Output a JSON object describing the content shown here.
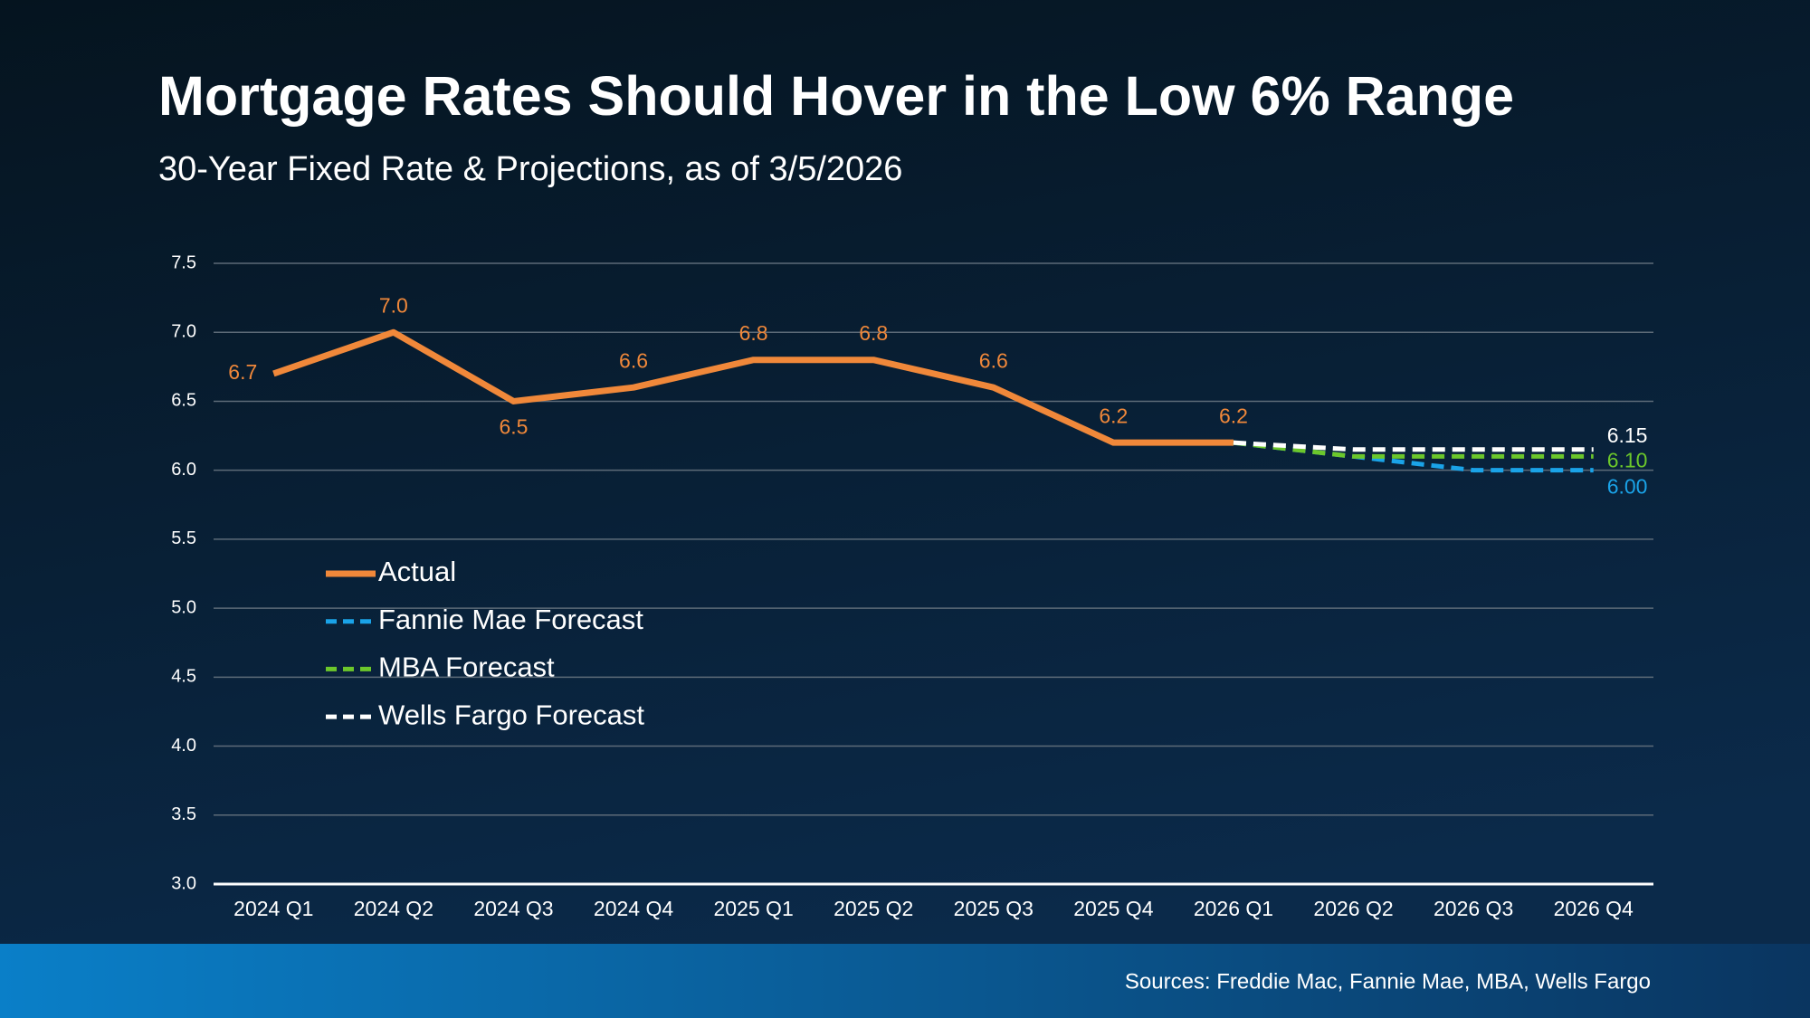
{
  "chart_data": {
    "type": "line",
    "title": "Mortgage Rates Should Hover in the Low 6% Range",
    "subtitle": "30-Year Fixed Rate & Projections, as of 3/5/2026",
    "source": "Sources: Freddie Mac, Fannie Mae, MBA, Wells Fargo",
    "categories": [
      "2024 Q1",
      "2024 Q2",
      "2024 Q3",
      "2024 Q4",
      "2025 Q1",
      "2025 Q2",
      "2025 Q3",
      "2025 Q4",
      "2026 Q1",
      "2026 Q2",
      "2026 Q3",
      "2026 Q4"
    ],
    "series": [
      {
        "name": "Actual",
        "color": "#f0883a",
        "dashed": false,
        "values": [
          6.7,
          7.0,
          6.5,
          6.6,
          6.8,
          6.8,
          6.6,
          6.2,
          6.2,
          null,
          null,
          null
        ],
        "value_labels": [
          "6.7",
          "7.0",
          "6.5",
          "6.6",
          "6.8",
          "6.8",
          "6.6",
          "6.2",
          "6.2",
          null,
          null,
          null
        ]
      },
      {
        "name": "Fannie Mae Forecast",
        "color": "#1aa3e8",
        "dashed": true,
        "values": [
          null,
          null,
          null,
          null,
          null,
          null,
          null,
          null,
          6.2,
          6.1,
          6.0,
          6.0
        ],
        "value_labels": [
          null,
          null,
          null,
          null,
          null,
          null,
          null,
          null,
          null,
          null,
          null,
          "6.00"
        ]
      },
      {
        "name": "MBA Forecast",
        "color": "#6cc72b",
        "dashed": true,
        "values": [
          null,
          null,
          null,
          null,
          null,
          null,
          null,
          null,
          6.2,
          6.1,
          6.1,
          6.1
        ],
        "value_labels": [
          null,
          null,
          null,
          null,
          null,
          null,
          null,
          null,
          null,
          null,
          null,
          "6.10"
        ]
      },
      {
        "name": "Wells Fargo Forecast",
        "color": "#ffffff",
        "dashed": true,
        "values": [
          null,
          null,
          null,
          null,
          null,
          null,
          null,
          null,
          6.2,
          6.15,
          6.15,
          6.15
        ],
        "value_labels": [
          null,
          null,
          null,
          null,
          null,
          null,
          null,
          null,
          null,
          null,
          null,
          "6.15"
        ]
      }
    ],
    "ylim": [
      3.0,
      7.5
    ],
    "yticks": [
      {
        "value": 3.0,
        "label": "3.0"
      },
      3.5,
      {
        "value": 4.0,
        "label": "4.0"
      },
      4.5,
      {
        "value": 5.0,
        "label": "5.0"
      },
      5.5,
      {
        "value": 6.0,
        "label": "6.0"
      },
      6.5,
      {
        "value": 7.0,
        "label": "7.0"
      },
      7.5
    ],
    "grid": true,
    "legend": "lower-left"
  }
}
